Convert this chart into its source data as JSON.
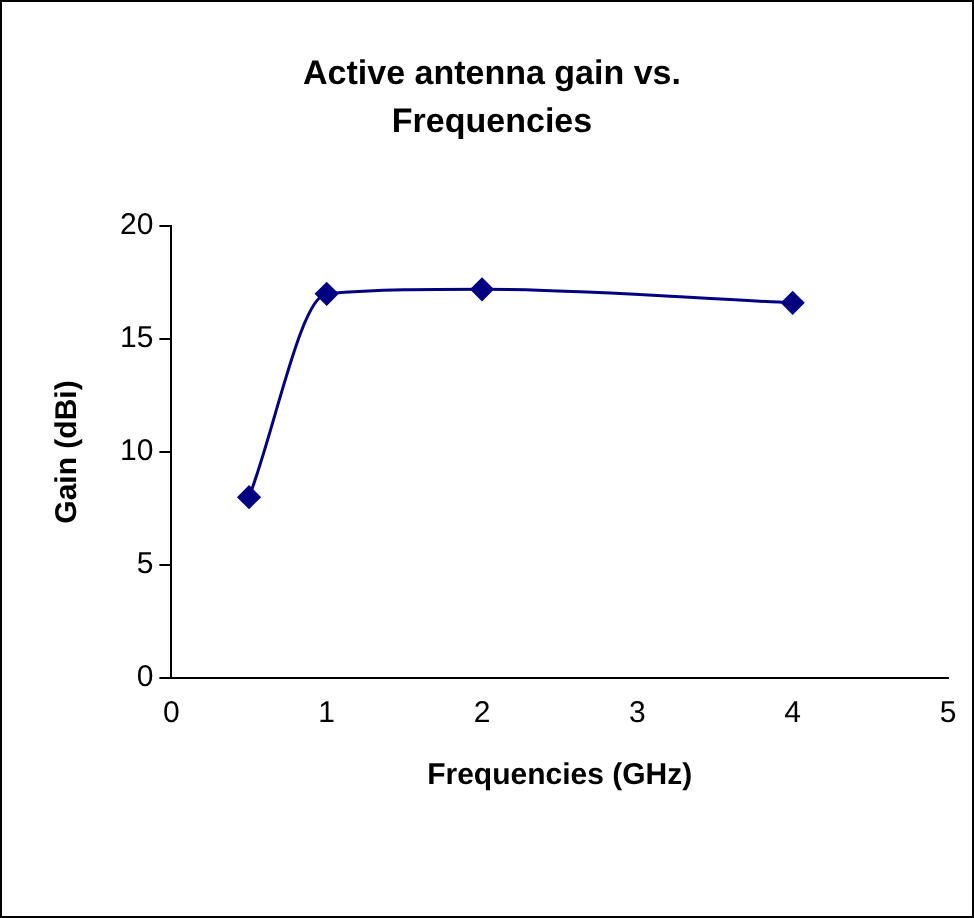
{
  "chart_data": {
    "type": "line",
    "title": "Active antenna gain vs. Frequencies",
    "xlabel": "Frequencies (GHz)",
    "ylabel": "Gain (dBi)",
    "x": [
      0.5,
      1,
      2,
      4
    ],
    "series": [
      {
        "color": "#000080",
        "values": [
          8,
          17,
          17.2,
          16.6
        ]
      }
    ],
    "xlim": [
      0,
      5
    ],
    "xticks": [
      0,
      1,
      2,
      3,
      4,
      5
    ],
    "ylim": [
      0,
      20
    ],
    "yticks": [
      0,
      5,
      10,
      15,
      20
    ],
    "grid": false,
    "legend": false,
    "marker": "diamond",
    "line_style": "solid"
  }
}
